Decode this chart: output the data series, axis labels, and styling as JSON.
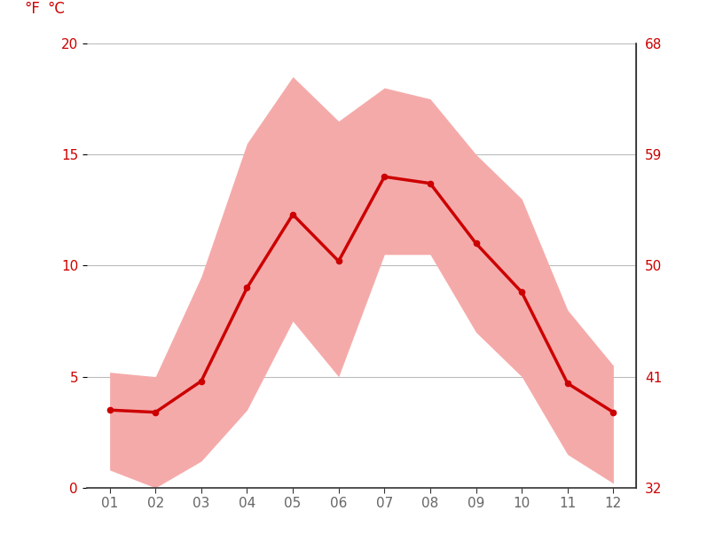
{
  "months": [
    1,
    2,
    3,
    4,
    5,
    6,
    7,
    8,
    9,
    10,
    11,
    12
  ],
  "month_labels": [
    "01",
    "02",
    "03",
    "04",
    "05",
    "06",
    "07",
    "08",
    "09",
    "10",
    "11",
    "12"
  ],
  "mean_temp_c": [
    3.5,
    3.4,
    4.8,
    9.0,
    12.3,
    10.2,
    14.0,
    13.7,
    11.0,
    8.8,
    4.7,
    3.4
  ],
  "max_temp_c": [
    5.2,
    5.0,
    9.5,
    15.5,
    18.5,
    16.5,
    18.0,
    17.5,
    15.0,
    13.0,
    8.0,
    5.5
  ],
  "min_temp_c": [
    0.8,
    0.0,
    1.2,
    3.5,
    7.5,
    5.0,
    10.5,
    10.5,
    7.0,
    5.0,
    1.5,
    0.2
  ],
  "ylim_c": [
    0,
    20
  ],
  "yticks_c": [
    0,
    5,
    10,
    15,
    20
  ],
  "yticks_f": [
    32,
    41,
    50,
    59,
    68
  ],
  "line_color": "#cc0000",
  "fill_color": "#f5aaaa",
  "background_color": "#ffffff",
  "grid_color": "#bbbbbb",
  "axis_label_color": "#cc0000",
  "tick_label_color": "#666666",
  "spine_color": "#333333",
  "label_fontsize": 11,
  "header_fontsize": 12
}
